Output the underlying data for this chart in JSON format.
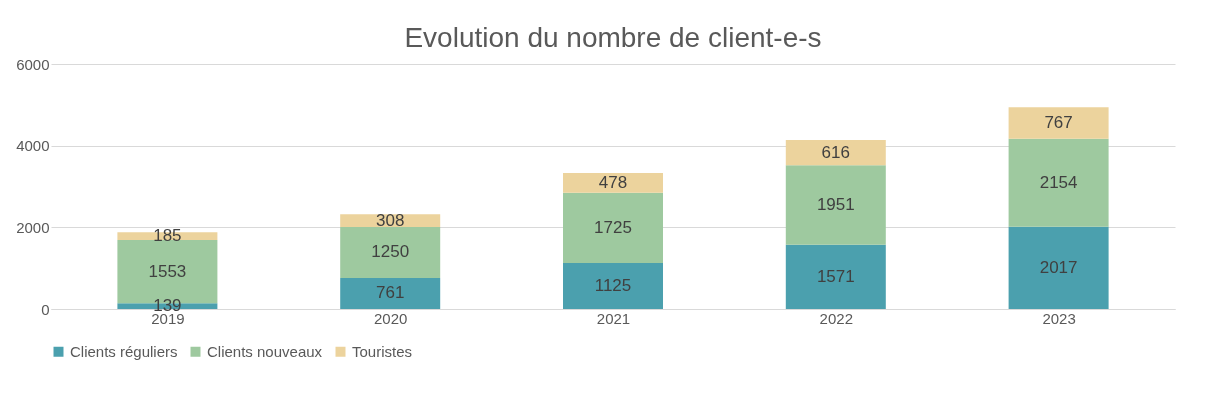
{
  "chart_data": {
    "type": "bar",
    "title": "Evolution du nombre de client-e-s",
    "categories": [
      "2019",
      "2020",
      "2021",
      "2022",
      "2023"
    ],
    "stacked": true,
    "ylim": [
      0,
      6000
    ],
    "yticks": [
      0,
      2000,
      4000,
      6000
    ],
    "grid": "y",
    "legend": "bottom",
    "data_labels": true,
    "series": [
      {
        "name": "Clients réguliers",
        "color": "#4ba0ae",
        "values": [
          139,
          761,
          1125,
          1571,
          2017
        ]
      },
      {
        "name": "Clients nouveaux",
        "color": "#9ec99f",
        "values": [
          1553,
          1250,
          1725,
          1951,
          2154
        ]
      },
      {
        "name": "Touristes",
        "color": "#ecd39d",
        "values": [
          185,
          308,
          478,
          616,
          767
        ]
      }
    ]
  }
}
